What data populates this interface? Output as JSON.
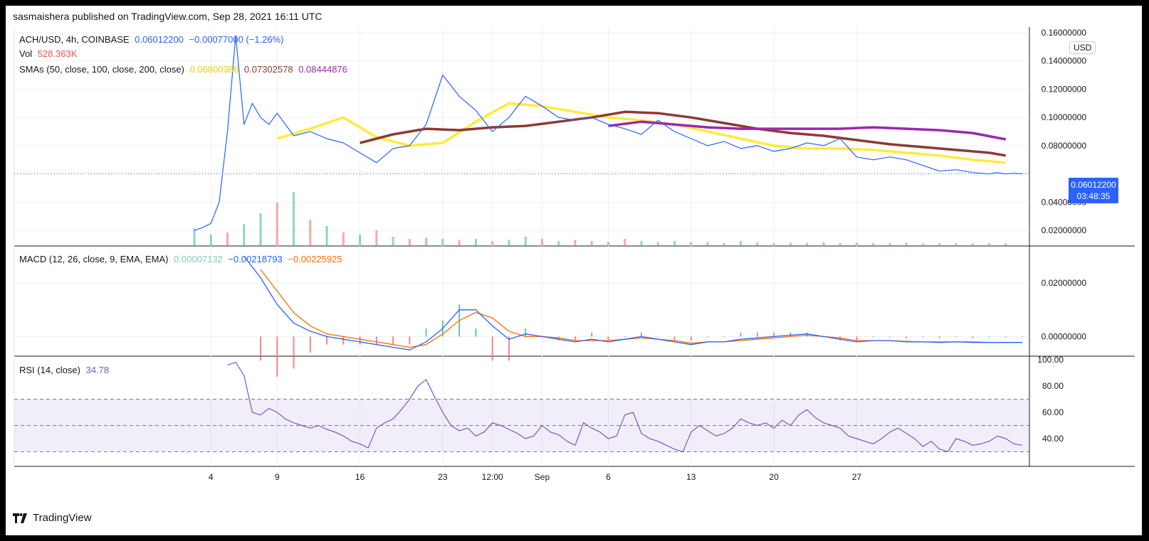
{
  "header": {
    "publisher": "sasmaishera published on TradingView.com, Sep 28, 2021 16:11 UTC"
  },
  "footer": {
    "brand": "TradingView"
  },
  "main_legend": {
    "symbol": "ACH/USD, 4h, COINBASE",
    "last": "0.06012200",
    "change": "−0.00077000 (−1.26%)",
    "vol_label": "Vol",
    "vol_value": "528.363K",
    "sma_label": "SMAs (50, close, 100, close, 200, close)",
    "sma50": "0.06800386",
    "sma100": "0.07302578",
    "sma200": "0.08444876"
  },
  "macd_legend": {
    "label": "MACD (12, 26, close, 9, EMA, EMA)",
    "hist": "0.00007132",
    "macd": "−0.00218793",
    "signal": "−0.00225925"
  },
  "rsi_legend": {
    "label": "RSI (14, close)",
    "value": "34.78"
  },
  "price_tag": {
    "price": "0.06012200",
    "countdown": "03:48:35"
  },
  "currency_badge": "USD",
  "colors": {
    "price": "#2962ff",
    "sma50": "#ffeb3b",
    "sma100": "#8d3a33",
    "sma200": "#9c27b0",
    "vol_up": "#26a69a",
    "vol_down": "#ef5350",
    "macd": "#2962ff",
    "signal": "#ff6d00",
    "rsi": "#7e57c2"
  },
  "chart_data": [
    {
      "type": "line",
      "panel": "price",
      "x_ticks": [
        "4",
        "9",
        "16",
        "23",
        "12:00",
        "Sep",
        "6",
        "13",
        "20",
        "27"
      ],
      "y_ticks": [
        "0.16000000",
        "0.14000000",
        "0.12000000",
        "0.10000000",
        "0.08000000",
        "0.04000000",
        "0.02000000"
      ],
      "ylim": [
        0.01,
        0.16
      ],
      "x_index_range": [
        0,
        100
      ],
      "tick_positions": [
        2,
        10,
        20,
        30,
        36,
        42,
        50,
        60,
        70,
        80
      ],
      "series": [
        {
          "name": "ACH/USD",
          "x": [
            0,
            1,
            2,
            3,
            4,
            5,
            6,
            7,
            8,
            9,
            10,
            12,
            14,
            16,
            18,
            20,
            22,
            24,
            26,
            28,
            30,
            32,
            34,
            36,
            38,
            40,
            42,
            44,
            46,
            48,
            50,
            52,
            54,
            56,
            58,
            60,
            62,
            64,
            66,
            68,
            70,
            72,
            74,
            76,
            78,
            80,
            82,
            84,
            86,
            88,
            90,
            92,
            94,
            96,
            97,
            98,
            99,
            100
          ],
          "values": [
            0.02,
            0.022,
            0.025,
            0.04,
            0.09,
            0.158,
            0.095,
            0.11,
            0.1,
            0.095,
            0.103,
            0.087,
            0.09,
            0.085,
            0.082,
            0.075,
            0.068,
            0.078,
            0.08,
            0.095,
            0.13,
            0.115,
            0.105,
            0.09,
            0.1,
            0.115,
            0.108,
            0.1,
            0.098,
            0.1,
            0.095,
            0.092,
            0.088,
            0.098,
            0.09,
            0.085,
            0.08,
            0.083,
            0.078,
            0.08,
            0.076,
            0.078,
            0.082,
            0.08,
            0.085,
            0.072,
            0.07,
            0.072,
            0.07,
            0.066,
            0.062,
            0.063,
            0.061,
            0.06,
            0.061,
            0.06,
            0.0605,
            0.0601
          ]
        },
        {
          "name": "SMA 50",
          "x": [
            10,
            14,
            18,
            22,
            26,
            30,
            34,
            38,
            42,
            46,
            50,
            54,
            58,
            62,
            66,
            70,
            74,
            78,
            82,
            86,
            90,
            94,
            98
          ],
          "values": [
            0.085,
            0.092,
            0.1,
            0.086,
            0.08,
            0.082,
            0.097,
            0.11,
            0.108,
            0.104,
            0.1,
            0.098,
            0.095,
            0.09,
            0.085,
            0.08,
            0.078,
            0.078,
            0.077,
            0.075,
            0.073,
            0.07,
            0.068
          ]
        },
        {
          "name": "SMA 100",
          "x": [
            20,
            24,
            28,
            32,
            36,
            40,
            44,
            48,
            52,
            56,
            60,
            64,
            68,
            72,
            76,
            80,
            84,
            88,
            92,
            96,
            98
          ],
          "values": [
            0.082,
            0.088,
            0.092,
            0.091,
            0.093,
            0.094,
            0.097,
            0.1,
            0.104,
            0.103,
            0.1,
            0.096,
            0.092,
            0.089,
            0.087,
            0.084,
            0.081,
            0.079,
            0.077,
            0.075,
            0.073
          ]
        },
        {
          "name": "SMA 200",
          "x": [
            50,
            54,
            58,
            62,
            66,
            70,
            74,
            78,
            82,
            86,
            90,
            94,
            98
          ],
          "values": [
            0.094,
            0.097,
            0.095,
            0.093,
            0.092,
            0.092,
            0.092,
            0.092,
            0.093,
            0.092,
            0.091,
            0.089,
            0.0845
          ]
        }
      ]
    },
    {
      "type": "bar",
      "panel": "volume",
      "x_index_range": [
        0,
        100
      ],
      "values": [
        0.8,
        0.5,
        0.6,
        1.0,
        1.5,
        2.0,
        2.5,
        1.2,
        0.9,
        0.6,
        0.5,
        0.7,
        0.4,
        0.3,
        0.35,
        0.3,
        0.25,
        0.3,
        0.2,
        0.25,
        0.4,
        0.3,
        0.2,
        0.25,
        0.2,
        0.15,
        0.3,
        0.2,
        0.15,
        0.2,
        0.15,
        0.15,
        0.1,
        0.2,
        0.15,
        0.1,
        0.12,
        0.1,
        0.15,
        0.1,
        0.12,
        0.1,
        0.1,
        0.12,
        0.08,
        0.1,
        0.1,
        0.08,
        0.1,
        0.09
      ],
      "up": [
        true,
        true,
        false,
        true,
        true,
        false,
        true,
        false,
        true,
        false,
        true,
        false,
        true,
        false,
        false,
        true,
        false,
        true,
        false,
        true,
        true,
        false,
        true,
        false,
        false,
        true,
        false,
        true,
        false,
        true,
        false,
        true,
        false,
        true,
        false,
        true,
        false,
        true,
        false,
        true,
        false,
        true,
        false,
        true,
        false,
        true,
        false,
        true,
        false,
        true
      ]
    },
    {
      "type": "line",
      "panel": "macd",
      "y_ticks": [
        "0.02000000",
        "0.00000000"
      ],
      "ylim": [
        -0.006,
        0.032
      ],
      "series": [
        {
          "name": "MACD",
          "x": [
            6,
            8,
            10,
            12,
            14,
            16,
            18,
            20,
            22,
            24,
            26,
            28,
            30,
            32,
            34,
            36,
            38,
            40,
            42,
            44,
            46,
            48,
            50,
            52,
            54,
            56,
            58,
            60,
            62,
            64,
            66,
            68,
            70,
            72,
            74,
            76,
            78,
            80,
            82,
            84,
            86,
            88,
            90,
            92,
            94,
            96,
            98,
            100
          ],
          "values": [
            0.03,
            0.022,
            0.012,
            0.005,
            0.002,
            0.0,
            -0.001,
            -0.002,
            -0.003,
            -0.004,
            -0.005,
            -0.002,
            0.003,
            0.01,
            0.01,
            0.004,
            -0.001,
            0.001,
            0.0,
            -0.001,
            -0.002,
            -0.001,
            -0.002,
            -0.001,
            0.0,
            -0.001,
            -0.002,
            -0.003,
            -0.002,
            -0.002,
            -0.001,
            -0.0005,
            0.0,
            0.0005,
            0.001,
            0.0,
            -0.001,
            -0.002,
            -0.0015,
            -0.0015,
            -0.002,
            -0.002,
            -0.0022,
            -0.002,
            -0.0022,
            -0.0022,
            -0.0022,
            -0.0022
          ]
        },
        {
          "name": "Signal",
          "x": [
            8,
            10,
            12,
            14,
            16,
            18,
            20,
            22,
            24,
            26,
            28,
            30,
            32,
            34,
            36,
            38,
            40,
            42,
            44,
            46,
            48,
            50,
            52,
            54,
            56,
            58,
            60,
            62,
            64,
            66,
            68,
            70,
            72,
            74,
            76,
            78,
            80,
            82,
            84,
            86,
            88,
            90,
            92,
            94,
            96,
            98,
            100
          ],
          "values": [
            0.025,
            0.017,
            0.009,
            0.004,
            0.001,
            0.0,
            -0.001,
            -0.002,
            -0.003,
            -0.004,
            -0.003,
            0.001,
            0.006,
            0.009,
            0.007,
            0.002,
            0.0,
            0.0,
            -0.0005,
            -0.0015,
            -0.0015,
            -0.0015,
            -0.001,
            -0.0005,
            -0.001,
            -0.0015,
            -0.0025,
            -0.002,
            -0.002,
            -0.0015,
            -0.001,
            -0.0005,
            0.0,
            0.0005,
            0.0,
            -0.0005,
            -0.0015,
            -0.0015,
            -0.0015,
            -0.0018,
            -0.002,
            -0.002,
            -0.002,
            -0.002,
            -0.0022,
            -0.0022,
            -0.0022
          ]
        }
      ]
    },
    {
      "type": "line",
      "panel": "rsi",
      "y_ticks": [
        "100.00",
        "80.00",
        "60.00",
        "40.00"
      ],
      "ylim": [
        20,
        100
      ],
      "bands": [
        30,
        50,
        70
      ],
      "series": [
        {
          "name": "RSI",
          "x": [
            4,
            5,
            6,
            7,
            8,
            9,
            10,
            11,
            12,
            13,
            14,
            15,
            16,
            17,
            18,
            19,
            20,
            21,
            22,
            23,
            24,
            25,
            26,
            27,
            28,
            29,
            30,
            31,
            32,
            33,
            34,
            35,
            36,
            37,
            38,
            39,
            40,
            41,
            42,
            43,
            44,
            45,
            46,
            47,
            48,
            49,
            50,
            51,
            52,
            53,
            54,
            55,
            56,
            57,
            58,
            59,
            60,
            61,
            62,
            63,
            64,
            65,
            66,
            67,
            68,
            69,
            70,
            71,
            72,
            73,
            74,
            75,
            76,
            77,
            78,
            79,
            80,
            81,
            82,
            83,
            84,
            85,
            86,
            87,
            88,
            89,
            90,
            91,
            92,
            93,
            94,
            95,
            96,
            97,
            98,
            99,
            100
          ],
          "values": [
            96,
            98,
            88,
            60,
            58,
            63,
            60,
            55,
            52,
            50,
            48,
            50,
            47,
            45,
            42,
            38,
            36,
            33,
            48,
            52,
            55,
            62,
            70,
            80,
            85,
            72,
            60,
            50,
            46,
            48,
            42,
            45,
            52,
            50,
            47,
            44,
            40,
            42,
            50,
            45,
            43,
            38,
            35,
            52,
            48,
            45,
            40,
            42,
            58,
            60,
            44,
            40,
            38,
            35,
            32,
            30,
            45,
            50,
            46,
            42,
            44,
            48,
            55,
            52,
            50,
            52,
            48,
            54,
            50,
            58,
            62,
            56,
            52,
            50,
            48,
            42,
            40,
            38,
            36,
            40,
            45,
            48,
            44,
            40,
            34,
            38,
            32,
            30,
            40,
            38,
            35,
            36,
            38,
            42,
            40,
            36,
            35
          ]
        }
      ]
    }
  ]
}
